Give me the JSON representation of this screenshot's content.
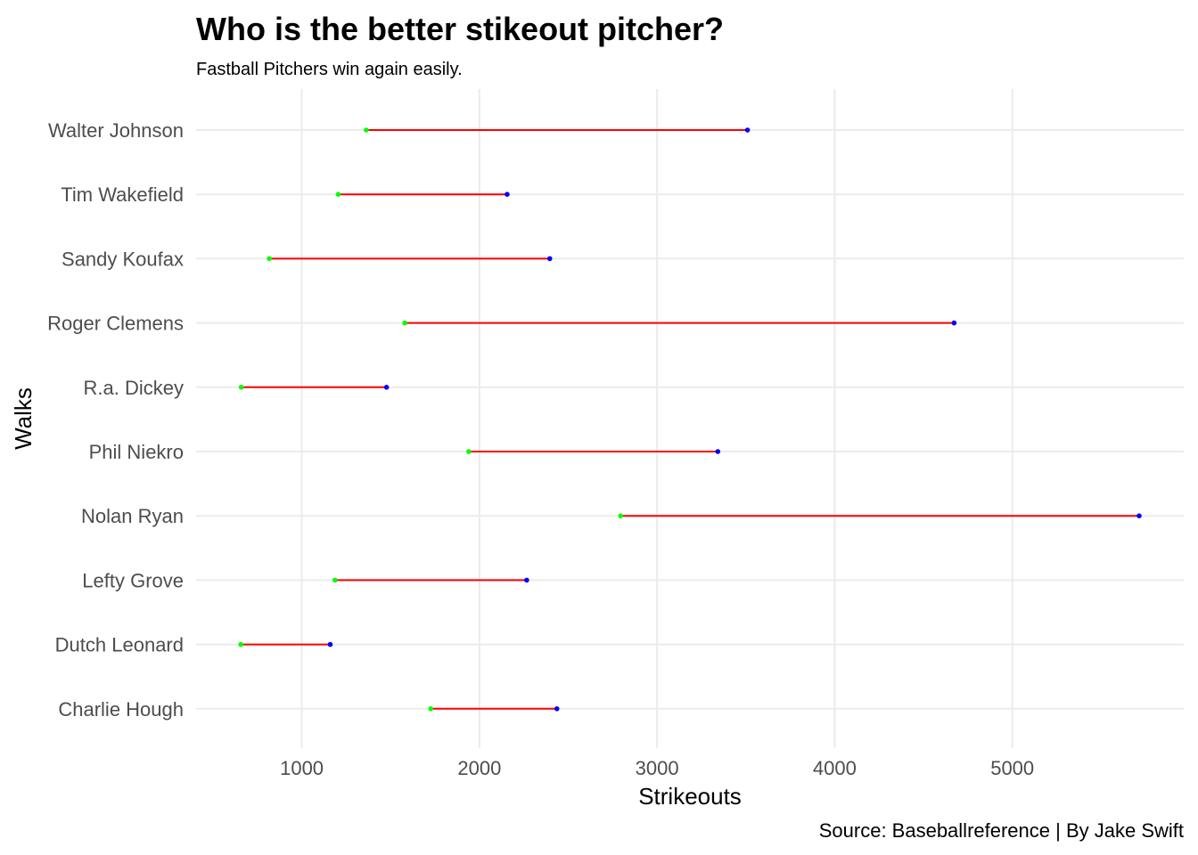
{
  "chart_data": {
    "type": "dumbbell",
    "title": "Who is the better stikeout pitcher?",
    "subtitle": "Fastball Pitchers win again easily.",
    "caption": "Source: Baseballreference | By Jake Swift",
    "xlabel": "Strikeouts",
    "ylabel": "Walks",
    "xlim": [
      405,
      5965
    ],
    "xticks": [
      1000,
      2000,
      3000,
      4000,
      5000
    ],
    "grid": true,
    "legend": "none",
    "colors": {
      "start": "#00ff00",
      "end": "#0000ff",
      "segment": "#ff0000",
      "grid": "#ebebeb"
    },
    "categories": [
      "Walter Johnson",
      "Tim Wakefield",
      "Sandy Koufax",
      "Roger Clemens",
      "R.a. Dickey",
      "Phil Niekro",
      "Nolan Ryan",
      "Lefty Grove",
      "Dutch Leonard",
      "Charlie Hough"
    ],
    "start_values": [
      1363,
      1205,
      817,
      1580,
      659,
      1940,
      2795,
      1187,
      657,
      1726
    ],
    "end_values": [
      3509,
      2156,
      2396,
      4672,
      1477,
      3342,
      5714,
      2266,
      1160,
      2436
    ]
  }
}
